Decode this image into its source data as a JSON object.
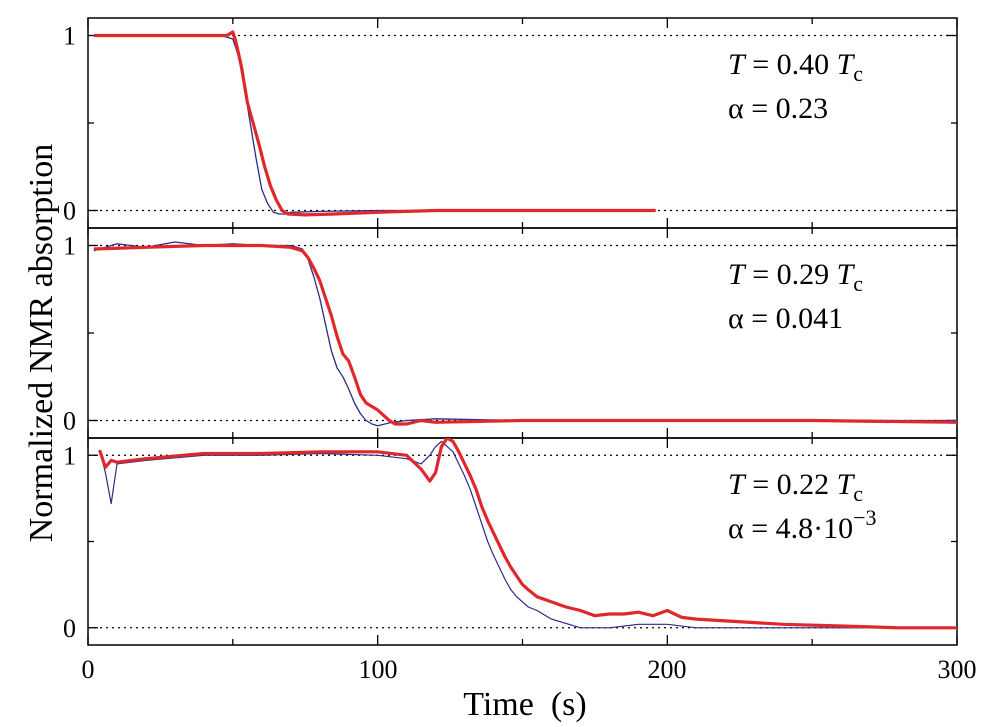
{
  "chart_data": [
    {
      "type": "line",
      "panel": "top",
      "x_range": [
        0,
        300
      ],
      "ylim": [
        -0.1,
        1.1
      ],
      "y_ticks": [
        "0",
        "1"
      ],
      "reference_lines": [
        0,
        1
      ],
      "annotation": {
        "t_symbol": "T",
        "t_rest": " = 0.40 ",
        "tc_base": "T",
        "tc_sub": "c",
        "alpha_line": "α = 0.23"
      },
      "series": [
        {
          "name": "thin",
          "color": "#2c2c86",
          "width": 1.3,
          "x": [
            2,
            40,
            46,
            50,
            52,
            54,
            56,
            58,
            60,
            62,
            64,
            66,
            68,
            70,
            80,
            100,
            150,
            196
          ],
          "y": [
            1,
            1,
            1,
            0.98,
            0.88,
            0.7,
            0.5,
            0.3,
            0.12,
            0.04,
            -0.01,
            -0.02,
            -0.02,
            -0.01,
            -0.005,
            0,
            0,
            0
          ]
        },
        {
          "name": "thick",
          "color": "#e0282c",
          "width": 3.2,
          "x": [
            2,
            40,
            48,
            50,
            51,
            53,
            55,
            57,
            59,
            61,
            63,
            65,
            67,
            69,
            75,
            85,
            100,
            120,
            150,
            196
          ],
          "y": [
            1,
            1,
            1.0,
            1.02,
            0.97,
            0.82,
            0.62,
            0.5,
            0.38,
            0.25,
            0.14,
            0.06,
            0.0,
            -0.02,
            -0.025,
            -0.02,
            -0.01,
            0,
            0,
            0
          ]
        }
      ]
    },
    {
      "type": "line",
      "panel": "middle",
      "x_range": [
        0,
        300
      ],
      "ylim": [
        -0.1,
        1.1
      ],
      "y_ticks": [
        "0",
        "1"
      ],
      "reference_lines": [
        0,
        1
      ],
      "annotation": {
        "t_symbol": "T",
        "t_rest": " = 0.29 ",
        "tc_base": "T",
        "tc_sub": "c",
        "alpha_line": "α = 0.041"
      },
      "series": [
        {
          "name": "thin",
          "color": "#2c2c86",
          "width": 1.3,
          "x": [
            2,
            10,
            20,
            30,
            40,
            50,
            60,
            70,
            74,
            76,
            78,
            80,
            82,
            84,
            86,
            88,
            90,
            92,
            94,
            96,
            98,
            100,
            105,
            110,
            120,
            150,
            200,
            250,
            300
          ],
          "y": [
            0.97,
            1.01,
            0.99,
            1.02,
            1.0,
            1.01,
            1.0,
            1.0,
            0.98,
            0.92,
            0.82,
            0.7,
            0.55,
            0.4,
            0.3,
            0.25,
            0.18,
            0.1,
            0.04,
            0.0,
            -0.02,
            -0.03,
            -0.01,
            0,
            0.01,
            0,
            0,
            0,
            0
          ]
        },
        {
          "name": "thick",
          "color": "#e0282c",
          "width": 3.2,
          "x": [
            2,
            20,
            40,
            60,
            70,
            74,
            76,
            78,
            80,
            82,
            84,
            86,
            88,
            90,
            92,
            94,
            96,
            98,
            100,
            102,
            104,
            106,
            110,
            115,
            120,
            150,
            200,
            250,
            300
          ],
          "y": [
            0.98,
            0.99,
            1.0,
            1.0,
            0.99,
            0.97,
            0.93,
            0.87,
            0.8,
            0.7,
            0.6,
            0.48,
            0.38,
            0.34,
            0.25,
            0.15,
            0.1,
            0.08,
            0.06,
            0.03,
            0.0,
            -0.02,
            -0.02,
            0.0,
            -0.01,
            0,
            0,
            0,
            -0.01
          ]
        }
      ]
    },
    {
      "type": "line",
      "panel": "bottom",
      "x_range": [
        0,
        300
      ],
      "ylim": [
        -0.1,
        1.1
      ],
      "y_ticks": [
        "0",
        "1"
      ],
      "reference_lines": [
        0,
        1
      ],
      "annotation": {
        "t_symbol": "T",
        "t_rest": " = 0.22 ",
        "tc_base": "T",
        "tc_sub": "c",
        "alpha_line": "α = 4.8·10",
        "alpha_sup": "−3"
      },
      "series": [
        {
          "name": "thin",
          "color": "#2c2c86",
          "width": 1.2,
          "x": [
            4,
            6,
            8,
            10,
            20,
            40,
            60,
            80,
            100,
            110,
            115,
            118,
            120,
            122,
            124,
            126,
            128,
            130,
            132,
            134,
            136,
            138,
            140,
            142,
            144,
            146,
            148,
            150,
            152,
            155,
            160,
            170,
            180,
            190,
            200,
            210,
            220,
            240,
            260,
            280,
            300
          ],
          "y": [
            1.03,
            0.9,
            0.72,
            0.95,
            0.97,
            1.0,
            1.0,
            1.01,
            1.0,
            0.98,
            0.95,
            1.0,
            1.05,
            1.08,
            1.05,
            1.02,
            0.95,
            0.88,
            0.8,
            0.7,
            0.6,
            0.5,
            0.42,
            0.35,
            0.28,
            0.22,
            0.18,
            0.15,
            0.12,
            0.1,
            0.05,
            0.0,
            0.0,
            0.02,
            0.02,
            0.0,
            0.0,
            0.0,
            0.0,
            0.0,
            0.0
          ]
        },
        {
          "name": "thick",
          "color": "#e0282c",
          "width": 3.2,
          "x": [
            4,
            6,
            8,
            10,
            20,
            40,
            60,
            80,
            100,
            110,
            115,
            118,
            120,
            122,
            124,
            126,
            128,
            130,
            132,
            134,
            136,
            138,
            140,
            142,
            144,
            146,
            148,
            150,
            152,
            155,
            160,
            165,
            170,
            175,
            180,
            185,
            190,
            195,
            200,
            205,
            210,
            220,
            240,
            260,
            280,
            300
          ],
          "y": [
            1.03,
            0.93,
            0.97,
            0.96,
            0.98,
            1.01,
            1.01,
            1.02,
            1.02,
            1.0,
            0.92,
            0.85,
            0.9,
            1.05,
            1.1,
            1.08,
            1.02,
            0.95,
            0.88,
            0.8,
            0.7,
            0.62,
            0.55,
            0.48,
            0.41,
            0.35,
            0.3,
            0.25,
            0.22,
            0.18,
            0.15,
            0.12,
            0.1,
            0.07,
            0.08,
            0.08,
            0.09,
            0.07,
            0.1,
            0.06,
            0.05,
            0.04,
            0.02,
            0.01,
            0.0,
            0.0
          ]
        }
      ]
    }
  ],
  "axes": {
    "x_ticks": [
      "0",
      "100",
      "200",
      "300"
    ],
    "xlabel": "Time  (s)",
    "ylabel": "Normalized NMR absorption"
  }
}
